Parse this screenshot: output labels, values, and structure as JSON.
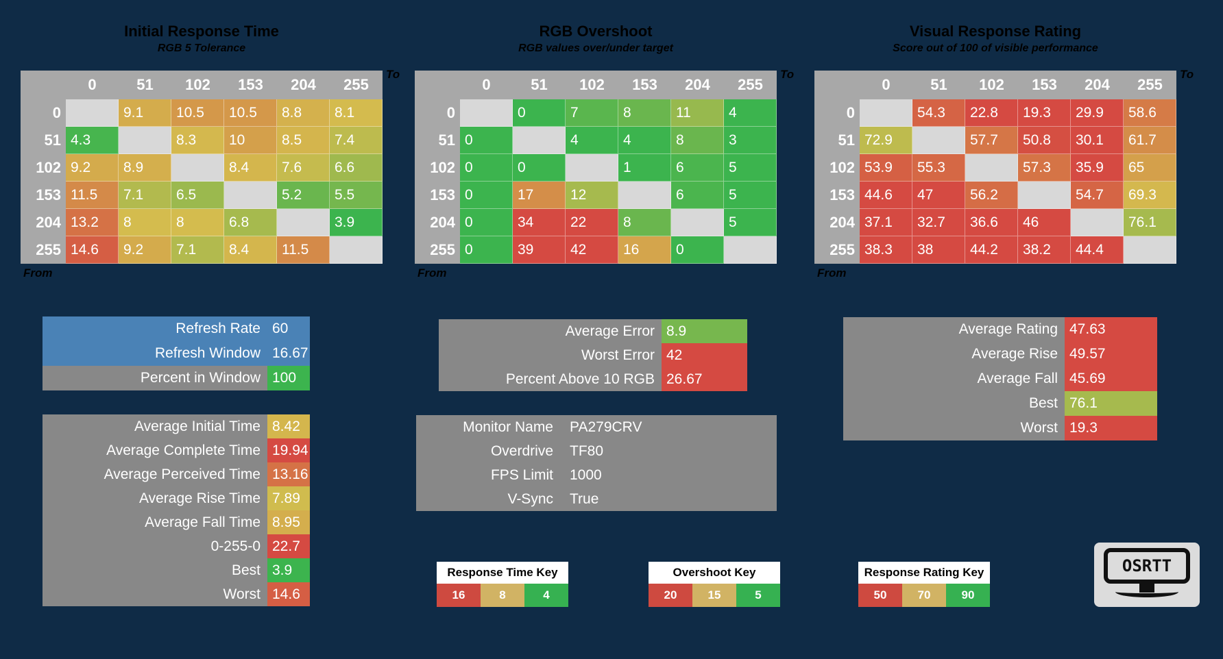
{
  "colors": {
    "background": "#0f2b46",
    "panel_gray": "#888888",
    "header_gray": "#a8a8a8",
    "diagonal_gray": "#d8d8d8",
    "blue_row": "#4a82b6",
    "scale_green": "#3cb44e",
    "scale_yellow": "#d4bc4e",
    "scale_red": "#d54a42"
  },
  "chart_data": [
    {
      "type": "heatmap",
      "title": "Initial Response Time",
      "subtitle": "RGB 5 Tolerance",
      "x_label": "To",
      "y_label": "From",
      "columns": [
        0,
        51,
        102,
        153,
        204,
        255
      ],
      "rows": [
        0,
        51,
        102,
        153,
        204,
        255
      ],
      "values": [
        [
          null,
          9.1,
          10.5,
          10.5,
          8.8,
          8.1
        ],
        [
          4.3,
          null,
          8.3,
          10,
          8.5,
          7.4
        ],
        [
          9.2,
          8.9,
          null,
          8.4,
          7.6,
          6.6
        ],
        [
          11.5,
          7.1,
          6.5,
          null,
          5.2,
          5.5
        ],
        [
          13.2,
          8,
          8,
          6.8,
          null,
          3.9
        ],
        [
          14.6,
          9.2,
          7.1,
          8.4,
          11.5,
          null
        ]
      ],
      "color_scale": {
        "stops": [
          [
            4,
            "#3cb44e"
          ],
          [
            8,
            "#d4bc4e"
          ],
          [
            16,
            "#d54a42"
          ]
        ]
      }
    },
    {
      "type": "heatmap",
      "title": "RGB Overshoot",
      "subtitle": "RGB values over/under target",
      "x_label": "To",
      "y_label": "From",
      "columns": [
        0,
        51,
        102,
        153,
        204,
        255
      ],
      "rows": [
        0,
        51,
        102,
        153,
        204,
        255
      ],
      "values": [
        [
          null,
          0,
          7,
          8,
          11,
          4
        ],
        [
          0,
          null,
          4,
          4,
          8,
          3
        ],
        [
          0,
          0,
          null,
          1,
          6,
          5
        ],
        [
          0,
          17,
          12,
          null,
          6,
          5
        ],
        [
          0,
          34,
          22,
          8,
          null,
          5
        ],
        [
          0,
          39,
          42,
          16,
          0,
          null
        ]
      ],
      "color_scale": {
        "stops": [
          [
            5,
            "#3cb44e"
          ],
          [
            15,
            "#d4bc4e"
          ],
          [
            20,
            "#d54a42"
          ]
        ]
      }
    },
    {
      "type": "heatmap",
      "title": "Visual Response Rating",
      "subtitle": "Score out of 100 of visible performance",
      "x_label": "To",
      "y_label": "From",
      "columns": [
        0,
        51,
        102,
        153,
        204,
        255
      ],
      "rows": [
        0,
        51,
        102,
        153,
        204,
        255
      ],
      "values": [
        [
          null,
          54.3,
          22.8,
          19.3,
          29.9,
          58.6
        ],
        [
          72.9,
          null,
          57.7,
          50.8,
          30.1,
          61.7
        ],
        [
          53.9,
          55.3,
          null,
          57.3,
          35.9,
          65
        ],
        [
          44.6,
          47,
          56.2,
          null,
          54.7,
          69.3
        ],
        [
          37.1,
          32.7,
          36.6,
          46,
          null,
          76.1
        ],
        [
          38.3,
          38,
          44.2,
          38.2,
          44.4,
          null
        ]
      ],
      "color_scale": {
        "stops": [
          [
            50,
            "#d54a42"
          ],
          [
            70,
            "#d4bc4e"
          ],
          [
            90,
            "#3cb44e"
          ]
        ]
      }
    }
  ],
  "panels": {
    "refresh": {
      "rows": [
        {
          "label": "Refresh Rate",
          "value": 60,
          "row_bg": "#4a82b6"
        },
        {
          "label": "Refresh Window",
          "value": 16.67,
          "row_bg": "#4a82b6"
        },
        {
          "label": "Percent in Window",
          "value": 100,
          "chip_color": "#3cb44e"
        }
      ]
    },
    "times": {
      "rows": [
        {
          "label": "Average Initial Time",
          "value": 8.42,
          "scale": 0
        },
        {
          "label": "Average Complete Time",
          "value": 19.94,
          "scale": 0
        },
        {
          "label": "Average Perceived Time",
          "value": 13.16,
          "scale": 0
        },
        {
          "label": "Average Rise Time",
          "value": 7.89,
          "scale": 0
        },
        {
          "label": "Average Fall Time",
          "value": 8.95,
          "scale": 0
        },
        {
          "label": "0-255-0",
          "value": 22.7,
          "scale": 0
        },
        {
          "label": "Best",
          "value": 3.9,
          "scale": 0
        },
        {
          "label": "Worst",
          "value": 14.6,
          "scale": 0
        }
      ]
    },
    "errors": {
      "rows": [
        {
          "label": "Average Error",
          "value": 8.9,
          "scale": 1
        },
        {
          "label": "Worst Error",
          "value": 42,
          "scale": 1
        },
        {
          "label": "Percent Above 10 RGB",
          "value": 26.67,
          "scale": 1
        }
      ]
    },
    "monitor": {
      "rows": [
        {
          "label": "Monitor Name",
          "value": "PA279CRV"
        },
        {
          "label": "Overdrive",
          "value": "TF80"
        },
        {
          "label": "FPS Limit",
          "value": 1000
        },
        {
          "label": "V-Sync",
          "value": "True"
        }
      ]
    },
    "ratings": {
      "rows": [
        {
          "label": "Average Rating",
          "value": 47.63,
          "scale": 2
        },
        {
          "label": "Average Rise",
          "value": 49.57,
          "scale": 2
        },
        {
          "label": "Average Fall",
          "value": 45.69,
          "scale": 2
        },
        {
          "label": "Best",
          "value": 76.1,
          "scale": 2
        },
        {
          "label": "Worst",
          "value": 19.3,
          "scale": 2
        }
      ]
    }
  },
  "keys": [
    {
      "title": "Response Time Key",
      "entries": [
        {
          "value": 16,
          "color": "#ce4a40"
        },
        {
          "value": 8,
          "color": "#d1b364"
        },
        {
          "value": 4,
          "color": "#36b151"
        }
      ]
    },
    {
      "title": "Overshoot Key",
      "entries": [
        {
          "value": 20,
          "color": "#ce4a40"
        },
        {
          "value": 15,
          "color": "#d1b364"
        },
        {
          "value": 5,
          "color": "#36b151"
        }
      ]
    },
    {
      "title": "Response Rating Key",
      "entries": [
        {
          "value": 50,
          "color": "#ce4a40"
        },
        {
          "value": 70,
          "color": "#d1b364"
        },
        {
          "value": 90,
          "color": "#36b151"
        }
      ]
    }
  ],
  "logo": {
    "text": "OSRTT"
  }
}
